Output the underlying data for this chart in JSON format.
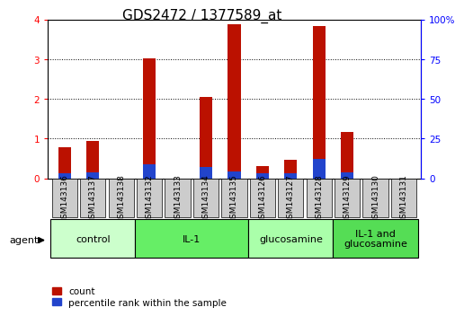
{
  "title": "GDS2472 / 1377589_at",
  "samples": [
    "GSM143136",
    "GSM143137",
    "GSM143138",
    "GSM143132",
    "GSM143133",
    "GSM143134",
    "GSM143135",
    "GSM143126",
    "GSM143127",
    "GSM143128",
    "GSM143129",
    "GSM143130",
    "GSM143131"
  ],
  "count_values": [
    0.78,
    0.93,
    0.0,
    3.02,
    0.0,
    2.05,
    3.88,
    0.3,
    0.47,
    3.82,
    1.16,
    0.0,
    0.0
  ],
  "percentile_values_pct": [
    3.0,
    3.5,
    0.0,
    8.5,
    0.0,
    7.0,
    4.5,
    3.0,
    3.0,
    12.0,
    3.5,
    0.0,
    0.0
  ],
  "groups": [
    {
      "label": "control",
      "start": 0,
      "end": 3,
      "color": "#ccffcc"
    },
    {
      "label": "IL-1",
      "start": 3,
      "end": 7,
      "color": "#66ee66"
    },
    {
      "label": "glucosamine",
      "start": 7,
      "end": 10,
      "color": "#aaffaa"
    },
    {
      "label": "IL-1 and\nglucosamine",
      "start": 10,
      "end": 13,
      "color": "#55dd55"
    }
  ],
  "ylim_left": [
    0,
    4
  ],
  "ylim_right": [
    0,
    100
  ],
  "yticks_left": [
    0,
    1,
    2,
    3,
    4
  ],
  "yticks_right": [
    0,
    25,
    50,
    75,
    100
  ],
  "yticklabels_right": [
    "0",
    "25",
    "50",
    "75",
    "100%"
  ],
  "bar_color_count": "#bb1100",
  "bar_color_percentile": "#2244cc",
  "bar_width": 0.45,
  "background_color": "#ffffff",
  "tick_box_color": "#cccccc",
  "legend_count": "count",
  "legend_percentile": "percentile rank within the sample",
  "title_fontsize": 11,
  "tick_fontsize": 6.5,
  "agent_label": "agent"
}
